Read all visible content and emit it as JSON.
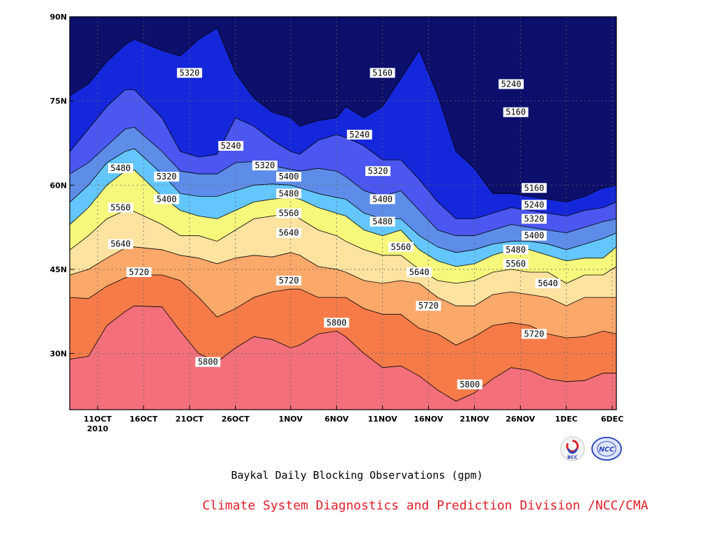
{
  "chart_data": {
    "type": "contour",
    "caption": "Baykal Daily Blocking Observations (gpm)",
    "credit": "Climate System Diagnostics and Prediction Division /NCC/CMA",
    "levels": [
      5160,
      5240,
      5320,
      5400,
      5480,
      5560,
      5640,
      5720,
      5800
    ],
    "band_colors": [
      "#0c0f6c",
      "#1527db",
      "#4b57f0",
      "#5d8de9",
      "#64c6ff",
      "#f6f87c",
      "#fde2a0",
      "#fba86b",
      "#f77b49",
      "#f36f7b"
    ],
    "x_axis": {
      "ticks": [
        "11OCT",
        "16OCT",
        "21OCT",
        "26OCT",
        "1NOV",
        "6NOV",
        "11NOV",
        "16NOV",
        "21NOV",
        "26NOV",
        "1DEC",
        "6DEC"
      ],
      "year_label": "2010"
    },
    "y_axis": {
      "ticks": [
        "30N",
        "45N",
        "60N",
        "75N",
        "90N"
      ],
      "range": [
        20,
        90
      ]
    },
    "grid": true,
    "x_days": [
      0,
      2,
      4,
      6,
      7,
      10,
      12,
      14,
      16,
      18,
      20,
      22,
      24,
      25,
      27,
      29,
      30,
      32,
      34,
      36,
      38,
      40,
      42,
      44,
      46,
      48,
      50,
      52,
      54,
      56,
      58,
      60
    ],
    "isolines": [
      {
        "level": 5800,
        "lat": [
          29.0,
          29.5,
          35,
          37.5,
          38.5,
          38.3,
          34,
          30,
          28.5,
          31,
          33,
          32.5,
          31,
          31.5,
          33.5,
          34,
          33,
          30,
          27.5,
          27.8,
          26,
          23.5,
          21.5,
          23,
          25.5,
          27.5,
          27,
          25.5,
          25,
          25.2,
          26.5,
          26.5
        ]
      },
      {
        "level": 5720,
        "lat": [
          40,
          39.8,
          42,
          43.5,
          44,
          44,
          43,
          40,
          36.5,
          38,
          40,
          41,
          41.5,
          41.5,
          40,
          40,
          40,
          38,
          37,
          37,
          34.5,
          33.5,
          31.5,
          33,
          35,
          35.5,
          35,
          33.5,
          32.8,
          33,
          34,
          33.5
        ]
      },
      {
        "level": 5640,
        "lat": [
          44,
          45,
          47,
          48.8,
          49,
          48.5,
          47.5,
          47,
          46,
          47,
          47.5,
          47.2,
          48,
          47.5,
          45.5,
          45,
          44.5,
          43,
          42.5,
          43,
          42.5,
          40,
          38.5,
          38.5,
          40.5,
          41,
          40.5,
          40,
          38.5,
          40,
          40,
          40
        ]
      },
      {
        "level": 5560,
        "lat": [
          48.5,
          51,
          54,
          55.5,
          55.3,
          53,
          51,
          51,
          50,
          52,
          54,
          54.5,
          55,
          54,
          52,
          51,
          50,
          48.5,
          47.5,
          47.5,
          45,
          43,
          42.5,
          43,
          44.5,
          45,
          44.5,
          44.5,
          42.5,
          44,
          44,
          45.5
        ]
      },
      {
        "level": 5480,
        "lat": [
          53,
          56,
          60,
          62.5,
          62.7,
          58,
          55.5,
          54.5,
          54,
          55.5,
          57,
          57.5,
          57.8,
          57.5,
          56,
          55,
          54.5,
          52,
          51,
          52,
          48.5,
          46.5,
          45.5,
          46,
          47.5,
          48.5,
          48.5,
          47.5,
          46.5,
          47,
          47,
          49
        ]
      },
      {
        "level": 5400,
        "lat": [
          57,
          60,
          64,
          66,
          66.5,
          62,
          58.5,
          58,
          58,
          59,
          60,
          60.2,
          60,
          59.5,
          58.5,
          57.8,
          57.5,
          55,
          54,
          54,
          51,
          49,
          48,
          48.5,
          49.5,
          50,
          50,
          49.5,
          48.5,
          49.5,
          50.5,
          51.5
        ]
      },
      {
        "level": 5320,
        "lat": [
          62,
          64,
          67,
          70,
          70.3,
          66,
          62.5,
          62,
          62,
          64,
          64.2,
          63.5,
          62.8,
          62.5,
          63,
          62.5,
          61.5,
          59,
          58,
          59,
          55.5,
          52,
          51,
          51,
          52,
          53,
          52.5,
          52,
          51.5,
          52.5,
          53.5,
          54
        ]
      },
      {
        "level": 5240,
        "lat": [
          66,
          70,
          74,
          77,
          77,
          72,
          66,
          65,
          65.5,
          72,
          70.5,
          68,
          66,
          65.5,
          68,
          69,
          68.5,
          67,
          64.5,
          64.5,
          61,
          57,
          54,
          54,
          55,
          56,
          55.5,
          55,
          54.5,
          55.5,
          56,
          57
        ]
      },
      {
        "level": 5160,
        "lat": [
          76,
          78,
          82,
          85,
          86,
          84,
          83,
          86,
          88,
          80,
          75.5,
          73,
          72,
          70.5,
          71.5,
          72,
          74,
          72,
          74,
          79,
          84,
          76,
          66,
          63,
          58.5,
          58.5,
          58,
          57.5,
          57,
          58,
          59.5,
          60
        ]
      }
    ],
    "labels": [
      {
        "text": "5320",
        "day": 13,
        "lat": 80
      },
      {
        "text": "5160",
        "day": 34,
        "lat": 80
      },
      {
        "text": "5240",
        "day": 48,
        "lat": 78
      },
      {
        "text": "5160",
        "day": 48.5,
        "lat": 73
      },
      {
        "text": "5240",
        "day": 17.5,
        "lat": 67
      },
      {
        "text": "5240",
        "day": 31.5,
        "lat": 69
      },
      {
        "text": "5320",
        "day": 21.2,
        "lat": 63.5
      },
      {
        "text": "5480",
        "day": 5.5,
        "lat": 63
      },
      {
        "text": "5320",
        "day": 10.5,
        "lat": 61.5
      },
      {
        "text": "5400",
        "day": 23.8,
        "lat": 61.5
      },
      {
        "text": "5320",
        "day": 33.5,
        "lat": 62.5
      },
      {
        "text": "5480",
        "day": 23.8,
        "lat": 58.5
      },
      {
        "text": "5160",
        "day": 50.5,
        "lat": 59.5
      },
      {
        "text": "5400",
        "day": 10.5,
        "lat": 57.5
      },
      {
        "text": "5400",
        "day": 34,
        "lat": 57.5
      },
      {
        "text": "5240",
        "day": 50.5,
        "lat": 56.5
      },
      {
        "text": "5560",
        "day": 5.5,
        "lat": 56
      },
      {
        "text": "5560",
        "day": 23.8,
        "lat": 55
      },
      {
        "text": "5320",
        "day": 50.5,
        "lat": 54
      },
      {
        "text": "5480",
        "day": 34,
        "lat": 53.5
      },
      {
        "text": "5640",
        "day": 23.8,
        "lat": 51.5
      },
      {
        "text": "5400",
        "day": 50.5,
        "lat": 51
      },
      {
        "text": "5640",
        "day": 5.5,
        "lat": 49.5
      },
      {
        "text": "5560",
        "day": 36,
        "lat": 49
      },
      {
        "text": "5480",
        "day": 48.5,
        "lat": 48.5
      },
      {
        "text": "5560",
        "day": 48.5,
        "lat": 46
      },
      {
        "text": "5720",
        "day": 7.5,
        "lat": 44.5
      },
      {
        "text": "5640",
        "day": 38,
        "lat": 44.5
      },
      {
        "text": "5720",
        "day": 23.8,
        "lat": 43
      },
      {
        "text": "5640",
        "day": 52,
        "lat": 42.5
      },
      {
        "text": "5720",
        "day": 39,
        "lat": 38.5
      },
      {
        "text": "5800",
        "day": 29,
        "lat": 35.5
      },
      {
        "text": "5720",
        "day": 50.5,
        "lat": 33.5
      },
      {
        "text": "5800",
        "day": 15,
        "lat": 28.5
      },
      {
        "text": "5800",
        "day": 43.5,
        "lat": 24.5
      }
    ]
  }
}
